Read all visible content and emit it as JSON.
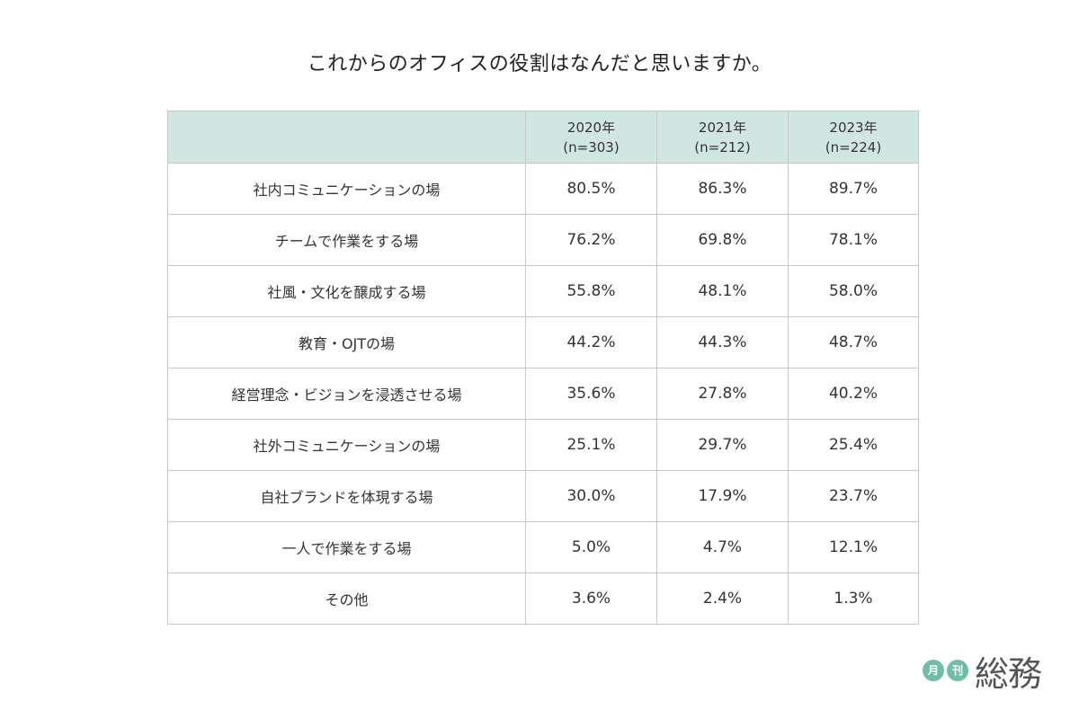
{
  "title": "これからのオフィスの役割はなんだと思いますか。",
  "chart_data": {
    "type": "table",
    "title": "これからのオフィスの役割はなんだと思いますか。",
    "columns": [
      {
        "year": "2020年",
        "n": "(n=303)"
      },
      {
        "year": "2021年",
        "n": "(n=212)"
      },
      {
        "year": "2023年",
        "n": "(n=224)"
      }
    ],
    "rows": [
      {
        "label": "社内コミュニケーションの場",
        "values": [
          "80.5%",
          "86.3%",
          "89.7%"
        ]
      },
      {
        "label": "チームで作業をする場",
        "values": [
          "76.2%",
          "69.8%",
          "78.1%"
        ]
      },
      {
        "label": "社風・文化を醸成する場",
        "values": [
          "55.8%",
          "48.1%",
          "58.0%"
        ]
      },
      {
        "label": "教育・OJTの場",
        "values": [
          "44.2%",
          "44.3%",
          "48.7%"
        ]
      },
      {
        "label": "経営理念・ビジョンを浸透させる場",
        "values": [
          "35.6%",
          "27.8%",
          "40.2%"
        ]
      },
      {
        "label": "社外コミュニケーションの場",
        "values": [
          "25.1%",
          "29.7%",
          "25.4%"
        ]
      },
      {
        "label": "自社ブランドを体現する場",
        "values": [
          "30.0%",
          "17.9%",
          "23.7%"
        ]
      },
      {
        "label": "一人で作業をする場",
        "values": [
          "5.0%",
          "4.7%",
          "12.1%"
        ]
      },
      {
        "label": "その他",
        "values": [
          "3.6%",
          "2.4%",
          "1.3%"
        ]
      }
    ]
  },
  "logo": {
    "badge1": "月",
    "badge2": "刊",
    "wordmark": "総務",
    "color": "#6fbfa8"
  },
  "colors": {
    "header_bg": "#cfe6e3",
    "border": "#c8c8c8",
    "text": "#333333"
  }
}
